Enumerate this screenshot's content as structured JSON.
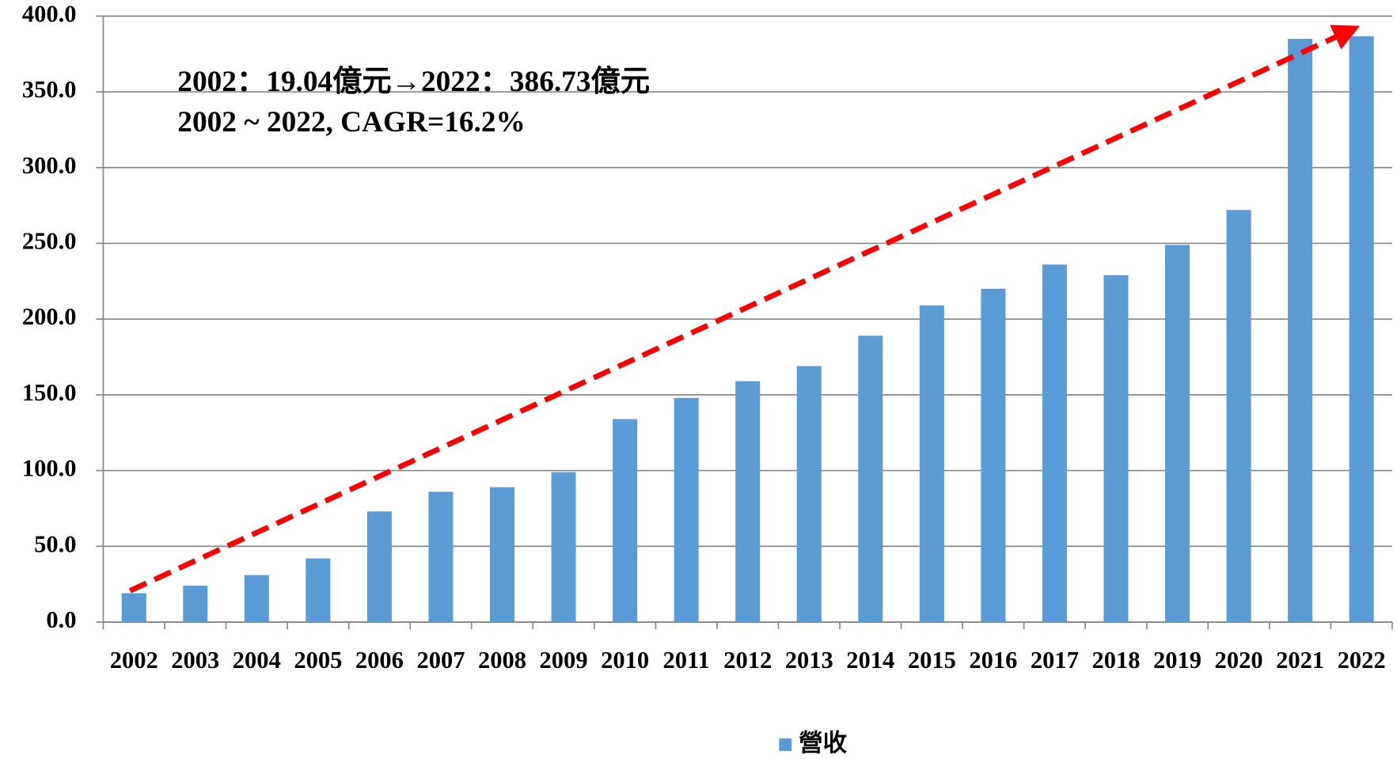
{
  "chart_data": {
    "type": "bar",
    "categories": [
      "2002",
      "2003",
      "2004",
      "2005",
      "2006",
      "2007",
      "2008",
      "2009",
      "2010",
      "2011",
      "2012",
      "2013",
      "2014",
      "2015",
      "2016",
      "2017",
      "2018",
      "2019",
      "2020",
      "2021",
      "2022"
    ],
    "series": [
      {
        "name": "營收",
        "color": "#5b9bd5",
        "values": [
          19.04,
          24,
          31,
          42,
          73,
          86,
          89,
          99,
          134,
          148,
          159,
          169,
          189,
          209,
          220,
          236,
          229,
          249,
          272,
          385,
          386.73
        ]
      }
    ],
    "ylim": [
      0,
      400
    ],
    "yticks": [
      {
        "value": 0,
        "label": "0.0"
      },
      {
        "value": 50,
        "label": "50.0"
      },
      {
        "value": 100,
        "label": "100.0"
      },
      {
        "value": 150,
        "label": "150.0"
      },
      {
        "value": 200,
        "label": "200.0"
      },
      {
        "value": 250,
        "label": "250.0"
      },
      {
        "value": 300,
        "label": "300.0"
      },
      {
        "value": 350,
        "label": "350.0"
      },
      {
        "value": 400,
        "label": "400.0"
      }
    ],
    "grid": true,
    "legend": "bottom",
    "annotations": [
      "2002：19.04億元→2022：386.73億元",
      "2002 ~ 2022, CAGR=16.2%"
    ]
  }
}
